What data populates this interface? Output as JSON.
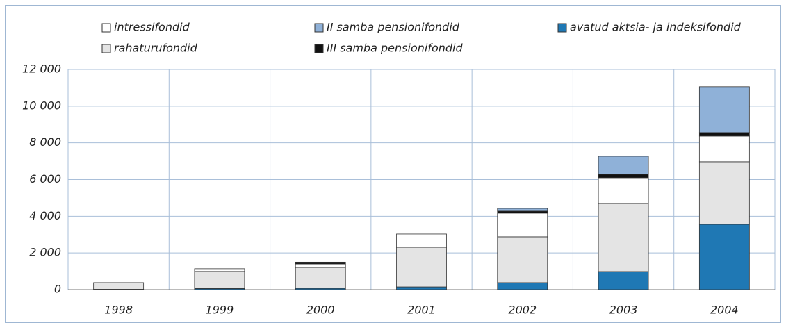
{
  "chart_data": {
    "type": "stacked_bar",
    "categories": [
      "1998",
      "1999",
      "2000",
      "2001",
      "2002",
      "2003",
      "2004"
    ],
    "series": [
      {
        "name": "avatud aktsia- ja indeksifondid",
        "color": "#1f78b4",
        "values": [
          20,
          60,
          70,
          150,
          380,
          985,
          3560
        ]
      },
      {
        "name": "rahaturufondid",
        "color": "#e4e4e4",
        "values": [
          350,
          930,
          1140,
          2160,
          2500,
          3715,
          3410
        ]
      },
      {
        "name": "intressifondid",
        "color": "#ffffff",
        "values": [
          10,
          150,
          190,
          720,
          1290,
          1400,
          1400
        ]
      },
      {
        "name": "III samba pensionifondid",
        "color": "#111111",
        "values": [
          0,
          0,
          100,
          0,
          110,
          190,
          190
        ]
      },
      {
        "name": "II samba pensionifondid",
        "color": "#8fb1d8",
        "values": [
          0,
          0,
          0,
          0,
          150,
          980,
          2500
        ]
      }
    ],
    "ylim": [
      0,
      12000
    ],
    "yticks": [
      0,
      {
        "value": 2000,
        "label": "2 000"
      },
      {
        "value": 4000,
        "label": "4 000"
      },
      {
        "value": 6000,
        "label": "6 000"
      },
      {
        "value": 8000,
        "label": "8 000"
      },
      {
        "value": 10000,
        "label": "10 000"
      },
      {
        "value": 12000,
        "label": "12 000"
      }
    ],
    "grid": true
  }
}
